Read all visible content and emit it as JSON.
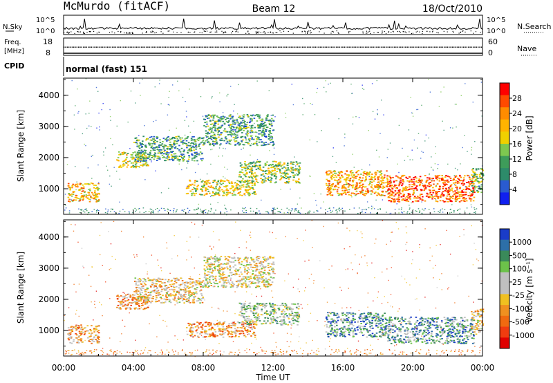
{
  "header": {
    "station": "McMurdo (fitACF)",
    "beam": "Beam 12",
    "date": "18/Oct/2010"
  },
  "strip_nsky": {
    "left_label": "N.Sky",
    "right_label": "N.Search",
    "tick_high": "10^5",
    "tick_low": "10^0"
  },
  "strip_freq": {
    "left_label_1": "Freq.",
    "left_label_2": "[MHz]",
    "right_label": "Nave",
    "left_ticks": [
      "18",
      "8"
    ],
    "right_ticks": [
      "60",
      "0"
    ]
  },
  "cpid": {
    "label": "CPID",
    "mode": "normal (fast) 151"
  },
  "time_axis": {
    "title": "Time UT",
    "ticks": [
      "00:00",
      "04:00",
      "08:00",
      "12:00",
      "16:00",
      "20:00",
      "00:00"
    ]
  },
  "chart_data": [
    {
      "type": "heatmap",
      "name": "power",
      "ylabel": "Slant Range [km]",
      "yticks": [
        1000,
        2000,
        3000,
        4000
      ],
      "ylim": [
        180,
        4550
      ],
      "xlim_hours": [
        0,
        24
      ],
      "colorbar": {
        "label": "Power [dB]",
        "ticks": [
          "28",
          "24",
          "20",
          "16",
          "12",
          "8",
          "4"
        ],
        "colors": [
          "#ff0000",
          "#ff4a00",
          "#ff8c00",
          "#ffb400",
          "#f0d000",
          "#7ec850",
          "#3e9c5a",
          "#2d8b6a",
          "#2a5bd0",
          "#1020f0"
        ]
      },
      "regions": [
        {
          "t": [
            0.2,
            2.0
          ],
          "r": [
            600,
            1200
          ],
          "level": 0.65
        },
        {
          "t": [
            3.0,
            4.8
          ],
          "r": [
            1700,
            2200
          ],
          "level": 0.55
        },
        {
          "t": [
            4.0,
            8.0
          ],
          "r": [
            1900,
            2700
          ],
          "level": 0.3
        },
        {
          "t": [
            7.0,
            11.0
          ],
          "r": [
            800,
            1300
          ],
          "level": 0.55
        },
        {
          "t": [
            8.0,
            12.0
          ],
          "r": [
            2400,
            3400
          ],
          "level": 0.3
        },
        {
          "t": [
            10.0,
            13.5
          ],
          "r": [
            1200,
            1900
          ],
          "level": 0.45
        },
        {
          "t": [
            15.0,
            18.5
          ],
          "r": [
            800,
            1600
          ],
          "level": 0.7
        },
        {
          "t": [
            18.5,
            23.5
          ],
          "r": [
            600,
            1450
          ],
          "level": 0.85
        },
        {
          "t": [
            23.3,
            24.0
          ],
          "r": [
            900,
            1700
          ],
          "level": 0.4
        }
      ]
    },
    {
      "type": "heatmap",
      "name": "velocity",
      "ylabel": "Slant Range [km]",
      "yticks": [
        1000,
        2000,
        3000,
        4000
      ],
      "ylim": [
        180,
        4550
      ],
      "xlim_hours": [
        0,
        24
      ],
      "colorbar": {
        "label": "Velocity [m s⁻¹]",
        "ticks": [
          "1000",
          "500",
          "100",
          "25",
          "-25",
          "-100",
          "-500",
          "-1000"
        ],
        "colors": [
          "#1a3cc8",
          "#2d6fa8",
          "#3a8a5a",
          "#6cc24a",
          "#c0c0c0",
          "#c0c0c0",
          "#f0c020",
          "#f09020",
          "#f06a10",
          "#f03c10",
          "#e00000"
        ]
      },
      "regions": [
        {
          "t": [
            0.2,
            2.0
          ],
          "r": [
            600,
            1200
          ],
          "level": 0.35
        },
        {
          "t": [
            3.0,
            4.8
          ],
          "r": [
            1700,
            2200
          ],
          "level": 0.3
        },
        {
          "t": [
            4.0,
            8.0
          ],
          "r": [
            1900,
            2700
          ],
          "level": 0.45
        },
        {
          "t": [
            7.0,
            11.0
          ],
          "r": [
            800,
            1300
          ],
          "level": 0.3
        },
        {
          "t": [
            8.0,
            12.0
          ],
          "r": [
            2400,
            3400
          ],
          "level": 0.5
        },
        {
          "t": [
            10.0,
            13.5
          ],
          "r": [
            1200,
            1900
          ],
          "level": 0.62
        },
        {
          "t": [
            15.0,
            18.5
          ],
          "r": [
            800,
            1600
          ],
          "level": 0.78
        },
        {
          "t": [
            18.5,
            23.5
          ],
          "r": [
            600,
            1450
          ],
          "level": 0.78
        },
        {
          "t": [
            23.3,
            24.0
          ],
          "r": [
            900,
            1700
          ],
          "level": 0.45
        }
      ]
    }
  ]
}
